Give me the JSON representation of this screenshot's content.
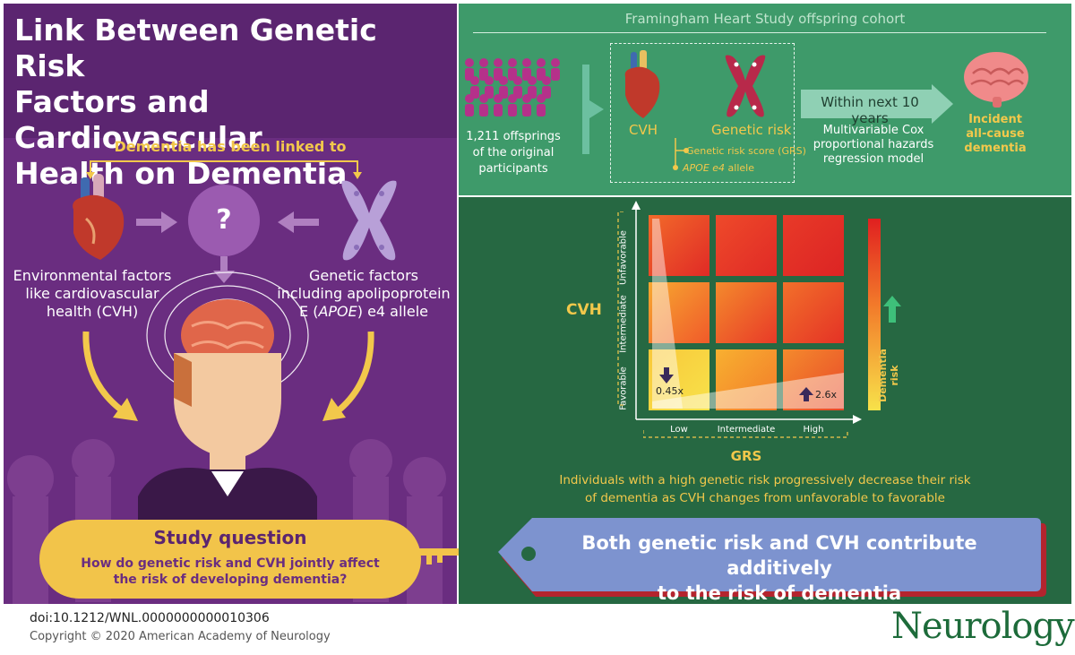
{
  "title": "Link Between Genetic Risk\nFactors and Cardiovascular\nHealth on Dementia",
  "left": {
    "linked_heading": "Dementia has been linked to",
    "question_mark": "?",
    "environmental": "Environmental factors\nlike cardiovascular\nhealth (CVH)",
    "genetic_pre": "Genetic factors\nincluding apolipoprotein\nE (",
    "genetic_apoe": "APOE",
    "genetic_post": ") e4 allele",
    "study_question_title": "Study question",
    "study_question_text": "How do genetic risk and CVH jointly affect\nthe risk of developing dementia?"
  },
  "top_right": {
    "cohort": "Framingham Heart Study offspring cohort",
    "participants": "1,211 offsprings\nof the  original\nparticipants",
    "cvh_label": "CVH",
    "genetic_label": "Genetic risk",
    "grs_item": "Genetic risk score (GRS)",
    "apoe_item_italic": "APOE e4",
    "apoe_item_rest": " allele",
    "arrow_label": "Within next 10 years",
    "model": "Multivariable Cox\nproportional hazards\nregression model",
    "outcome": "Incident\nall-cause\ndementia"
  },
  "chart_data": {
    "type": "heatmap",
    "xlabel": "GRS",
    "ylabel": "CVH",
    "x_categories": [
      "Low",
      "Intermediate",
      "High"
    ],
    "y_categories": [
      "Unfavorable",
      "Intermediate",
      "Favorable"
    ],
    "colorbar_label": "Dementia risk",
    "annotations": [
      {
        "cell": [
          "Low",
          "Favorable"
        ],
        "text": "0.45x",
        "direction": "down"
      },
      {
        "cell": [
          "High",
          "Favorable"
        ],
        "text": "2.6x",
        "direction": "up"
      }
    ]
  },
  "finding": "Individuals with a high genetic risk progressively decrease their risk\nof dementia as CVH changes from unfavorable to favorable",
  "conclusion": "Both genetic risk and CVH contribute additively\nto the risk of dementia",
  "footer": {
    "doi": "doi:10.1212/WNL.0000000000010306",
    "copyright": "Copyright © 2020 American Academy of Neurology",
    "journal": "Neurology",
    "registered": "®"
  },
  "colors": {
    "purple": "#6a2d80",
    "green_top": "#3e9a6a",
    "green_bottom": "#266842",
    "yellow": "#f2c84b",
    "conclusion_blue": "#7d93cf"
  }
}
